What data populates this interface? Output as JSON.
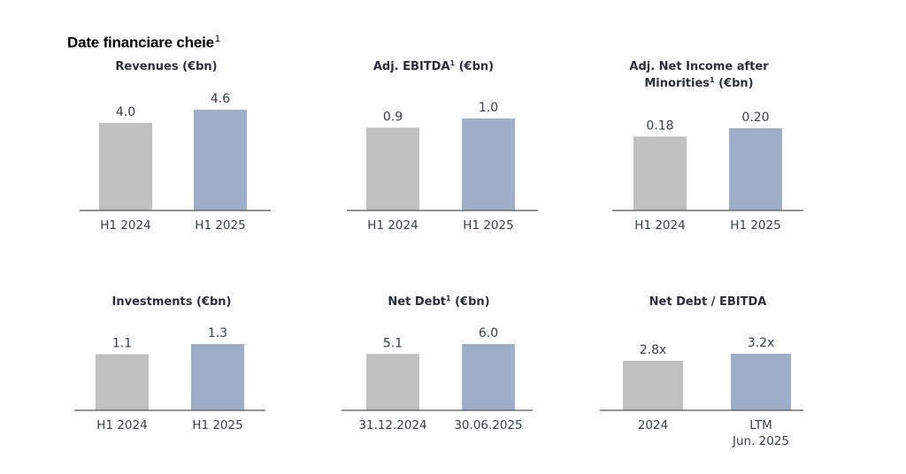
{
  "page_title": "Date financiare cheie",
  "page_title_sup": "1",
  "colors": {
    "grey_bar": "#c0c0c0",
    "blue_bar": "#9eaec9",
    "axis": "#555555",
    "text": "#2b2f3a"
  },
  "chart_data": [
    {
      "type": "bar",
      "title": "Revenues (€bn)",
      "title_lines": [
        [
          "Revenues (€bn)",
          ""
        ]
      ],
      "categories": [
        "H1 2024",
        "H1 2025"
      ],
      "values": [
        4.0,
        4.6
      ],
      "value_labels": [
        "4.0",
        "4.6"
      ],
      "ylim": [
        0,
        4.6
      ]
    },
    {
      "type": "bar",
      "title": "Adj. EBITDA¹ (€bn)",
      "title_lines": [
        [
          "Adj. EBITDA",
          "1",
          " (€bn)"
        ]
      ],
      "categories": [
        "H1 2024",
        "H1 2025"
      ],
      "values": [
        0.9,
        1.0
      ],
      "value_labels": [
        "0.9",
        "1.0"
      ],
      "ylim": [
        0,
        1.0
      ]
    },
    {
      "type": "bar",
      "title": "Adj. Net Income after Minorities¹ (€bn)",
      "title_lines": [
        [
          "Adj. Net Income after",
          "",
          ""
        ],
        [
          "Minorities",
          "1",
          " (€bn)"
        ]
      ],
      "categories": [
        "H1 2024",
        "H1 2025"
      ],
      "values": [
        0.18,
        0.2
      ],
      "value_labels": [
        "0.18",
        "0.20"
      ],
      "ylim": [
        0,
        0.2
      ]
    },
    {
      "type": "bar",
      "title": "Investments (€bn)",
      "title_lines": [
        [
          "Investments (€bn)",
          ""
        ]
      ],
      "categories": [
        "H1 2024",
        "H1 2025"
      ],
      "values": [
        1.1,
        1.3
      ],
      "value_labels": [
        "1.1",
        "1.3"
      ],
      "ylim": [
        0,
        1.3
      ]
    },
    {
      "type": "bar",
      "title": "Net Debt¹ (€bn)",
      "title_lines": [
        [
          "Net Debt",
          "1",
          " (€bn)"
        ]
      ],
      "categories": [
        "31.12.2024",
        "30.06.2025"
      ],
      "values": [
        5.1,
        6.0
      ],
      "value_labels": [
        "5.1",
        "6.0"
      ],
      "ylim": [
        0,
        6.0
      ]
    },
    {
      "type": "bar",
      "title": "Net Debt / EBITDA",
      "title_lines": [
        [
          "Net Debt / EBITDA",
          ""
        ]
      ],
      "categories": [
        "2024",
        "LTM Jun. 2025"
      ],
      "category_lines": [
        [
          "2024"
        ],
        [
          "LTM",
          "Jun. 2025"
        ]
      ],
      "values": [
        2.8,
        3.2
      ],
      "value_labels": [
        "2.8x",
        "3.2x"
      ],
      "ylim": [
        0,
        3.2
      ]
    }
  ]
}
